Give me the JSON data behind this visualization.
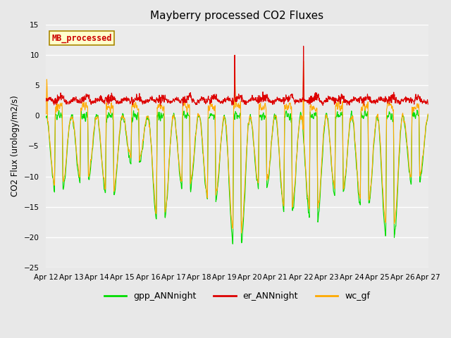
{
  "title": "Mayberry processed CO2 Fluxes",
  "ylabel": "CO2 Flux (urology/m2/s)",
  "ylim": [
    -25,
    15
  ],
  "yticks": [
    -25,
    -20,
    -15,
    -10,
    -5,
    0,
    5,
    10,
    15
  ],
  "n_days": 15,
  "n_per_day": 96,
  "start_day": 12,
  "colors": {
    "gpp": "#00dd00",
    "er": "#dd0000",
    "wc_gf": "#ffaa00"
  },
  "labels": {
    "gpp": "gpp_ANNnight",
    "er": "er_ANNnight",
    "wc_gf": "wc_gf"
  },
  "legend_label": "MB_processed",
  "legend_label_color": "#cc0000",
  "legend_label_bg": "#ffffcc",
  "legend_label_edge": "#aa8800",
  "bg_color": "#e8e8e8",
  "plot_bg": "#ebebeb",
  "grid_color": "#ffffff",
  "linewidth": 0.8,
  "x_tick_labels": [
    "Apr 12",
    "Apr 13",
    "Apr 14",
    "Apr 15",
    "Apr 16",
    "Apr 17",
    "Apr 18",
    "Apr 19",
    "Apr 20",
    "Apr 21",
    "Apr 22",
    "Apr 23",
    "Apr 24",
    "Apr 25",
    "Apr 26",
    "Apr 27"
  ],
  "figsize": [
    6.4,
    4.8
  ],
  "dpi": 100,
  "title_fontsize": 11,
  "tick_fontsize": 7.5,
  "ylabel_fontsize": 8.5
}
